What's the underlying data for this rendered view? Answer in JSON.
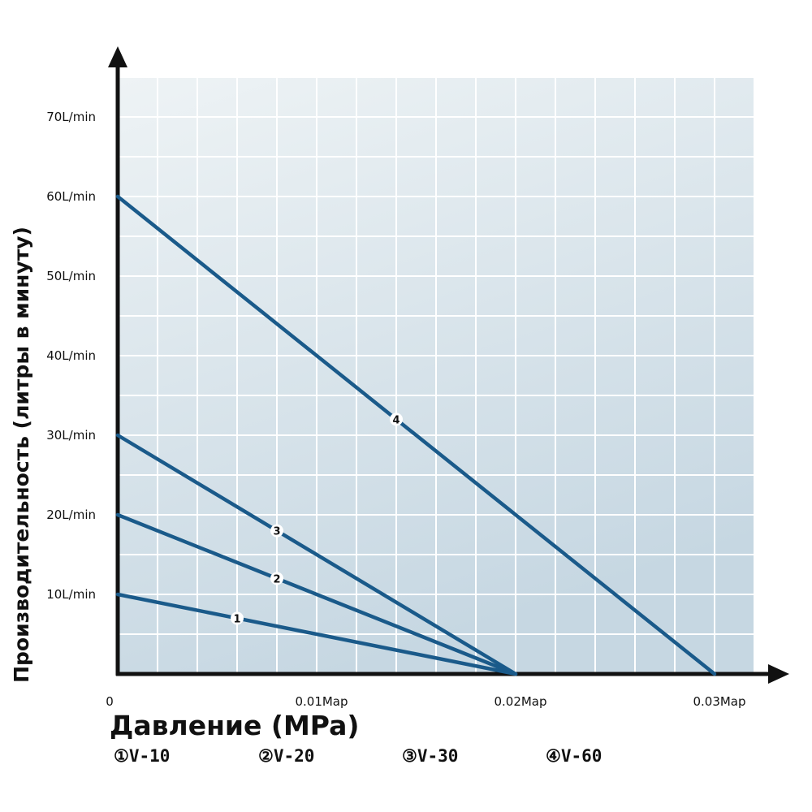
{
  "chart_data": {
    "type": "line",
    "xlabel": "Давление (MPa)",
    "ylabel": "Производительность (литры в минуту)",
    "xlim": [
      0,
      0.032
    ],
    "ylim": [
      0,
      75
    ],
    "grid": true,
    "x_ticks": [
      {
        "value": 0,
        "label": "0"
      },
      {
        "value": 0.01,
        "label": "0.01Map"
      },
      {
        "value": 0.02,
        "label": "0.02Map"
      },
      {
        "value": 0.03,
        "label": "0.03Map"
      }
    ],
    "y_ticks": [
      {
        "value": 10,
        "label": "10L/min"
      },
      {
        "value": 20,
        "label": "20L/min"
      },
      {
        "value": 30,
        "label": "30L/min"
      },
      {
        "value": 40,
        "label": "40L/min"
      },
      {
        "value": 50,
        "label": "50L/min"
      },
      {
        "value": 60,
        "label": "60L/min"
      },
      {
        "value": 70,
        "label": "70L/min"
      }
    ],
    "series": [
      {
        "name": "V-10",
        "marker": "1",
        "marker_x": 0.006,
        "points": [
          [
            0,
            10
          ],
          [
            0.02,
            0
          ]
        ]
      },
      {
        "name": "V-20",
        "marker": "2",
        "marker_x": 0.008,
        "points": [
          [
            0,
            20
          ],
          [
            0.02,
            0
          ]
        ]
      },
      {
        "name": "V-30",
        "marker": "3",
        "marker_x": 0.008,
        "points": [
          [
            0,
            30
          ],
          [
            0.02,
            0
          ]
        ]
      },
      {
        "name": "V-60",
        "marker": "4",
        "marker_x": 0.014,
        "points": [
          [
            0,
            60
          ],
          [
            0.03,
            0
          ]
        ]
      }
    ],
    "legend": {
      "placement": "bottom",
      "items": [
        "①V-10",
        "②V-20",
        "③V-30",
        "④V-60"
      ]
    }
  },
  "colors": {
    "line": "#1a5a8a",
    "grid": "#ffffff",
    "plot_top": "#eef3f5",
    "plot_bottom": "#c6d7e2",
    "axis": "#111111"
  }
}
